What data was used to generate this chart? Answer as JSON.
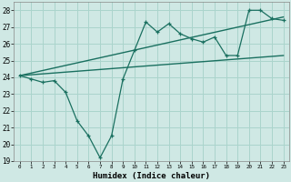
{
  "title": "",
  "xlabel": "Humidex (Indice chaleur)",
  "ylabel": "",
  "background_color": "#cfe8e4",
  "grid_color": "#aad4cc",
  "line_color": "#1a7060",
  "xlim": [
    -0.5,
    23.5
  ],
  "ylim": [
    19,
    28.5
  ],
  "yticks": [
    19,
    20,
    21,
    22,
    23,
    24,
    25,
    26,
    27,
    28
  ],
  "xticks": [
    0,
    1,
    2,
    3,
    4,
    5,
    6,
    7,
    8,
    9,
    10,
    11,
    12,
    13,
    14,
    15,
    16,
    17,
    18,
    19,
    20,
    21,
    22,
    23
  ],
  "series1_x": [
    0,
    1,
    2,
    3,
    4,
    5,
    6,
    7,
    8,
    9,
    10,
    11,
    12,
    13,
    14,
    15,
    16,
    17,
    18,
    19,
    20,
    21,
    22,
    23
  ],
  "series1_y": [
    24.1,
    23.9,
    23.7,
    23.8,
    23.1,
    21.4,
    20.5,
    19.2,
    20.5,
    23.9,
    25.6,
    27.3,
    26.7,
    27.2,
    26.6,
    26.3,
    26.1,
    26.4,
    25.3,
    25.3,
    28.0,
    28.0,
    27.5,
    27.4
  ],
  "series2_x": [
    0,
    23
  ],
  "series2_y": [
    24.1,
    27.6
  ],
  "series3_x": [
    0,
    23
  ],
  "series3_y": [
    24.1,
    25.3
  ]
}
